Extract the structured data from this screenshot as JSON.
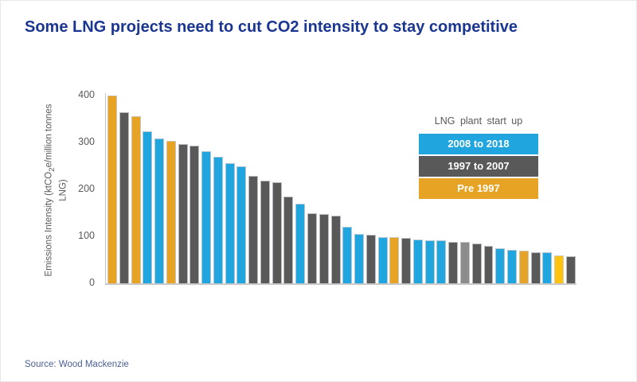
{
  "page": {
    "title": "Some LNG projects need to cut CO2 intensity to stay competitive",
    "source": "Source: Wood Mackenzie"
  },
  "theme": {
    "title_color": "#1a3691",
    "axis_text_color": "#595959",
    "axis_line_color": "#c9c9c9",
    "source_color": "#4c6196",
    "background": "#ffffff"
  },
  "chart_data": {
    "type": "bar",
    "title": "Some LNG projects need to cut CO2 intensity to stay competitive",
    "xlabel": "",
    "ylabel": "Emissions Intensity (ktCO2e/million tonnes LNG)",
    "ylim": [
      0,
      400
    ],
    "yticks": [
      0,
      100,
      200,
      300,
      400
    ],
    "grid": false,
    "legend_position": "upper right",
    "legend_title": "LNG plant start up",
    "legend": [
      {
        "label": "2008 to 2018",
        "key": "blue",
        "color": "#21a5de"
      },
      {
        "label": "1997 to 2007",
        "key": "gray",
        "color": "#595959"
      },
      {
        "label": "Pre 1997",
        "key": "orange",
        "color": "#e6a324"
      }
    ],
    "palette": {
      "blue": "#21a5de",
      "gray": "#595959",
      "lightgray": "#8c8c8c",
      "orange": "#e6a324",
      "yellow": "#ffc20e"
    },
    "values": [
      400,
      364,
      356,
      324,
      309,
      303,
      296,
      293,
      282,
      269,
      256,
      250,
      228,
      219,
      215,
      184,
      170,
      149,
      147,
      144,
      120,
      105,
      103,
      99,
      98,
      96,
      94,
      92,
      91,
      89,
      89,
      84,
      80,
      75,
      71,
      70,
      66,
      66,
      60,
      57
    ],
    "colors": [
      "orange",
      "gray",
      "orange",
      "blue",
      "blue",
      "orange",
      "gray",
      "gray",
      "blue",
      "blue",
      "blue",
      "blue",
      "gray",
      "gray",
      "gray",
      "gray",
      "blue",
      "gray",
      "gray",
      "gray",
      "blue",
      "blue",
      "gray",
      "blue",
      "orange",
      "gray",
      "blue",
      "blue",
      "blue",
      "gray",
      "lightgray",
      "gray",
      "gray",
      "blue",
      "blue",
      "orange",
      "gray",
      "blue",
      "yellow",
      "gray"
    ]
  }
}
